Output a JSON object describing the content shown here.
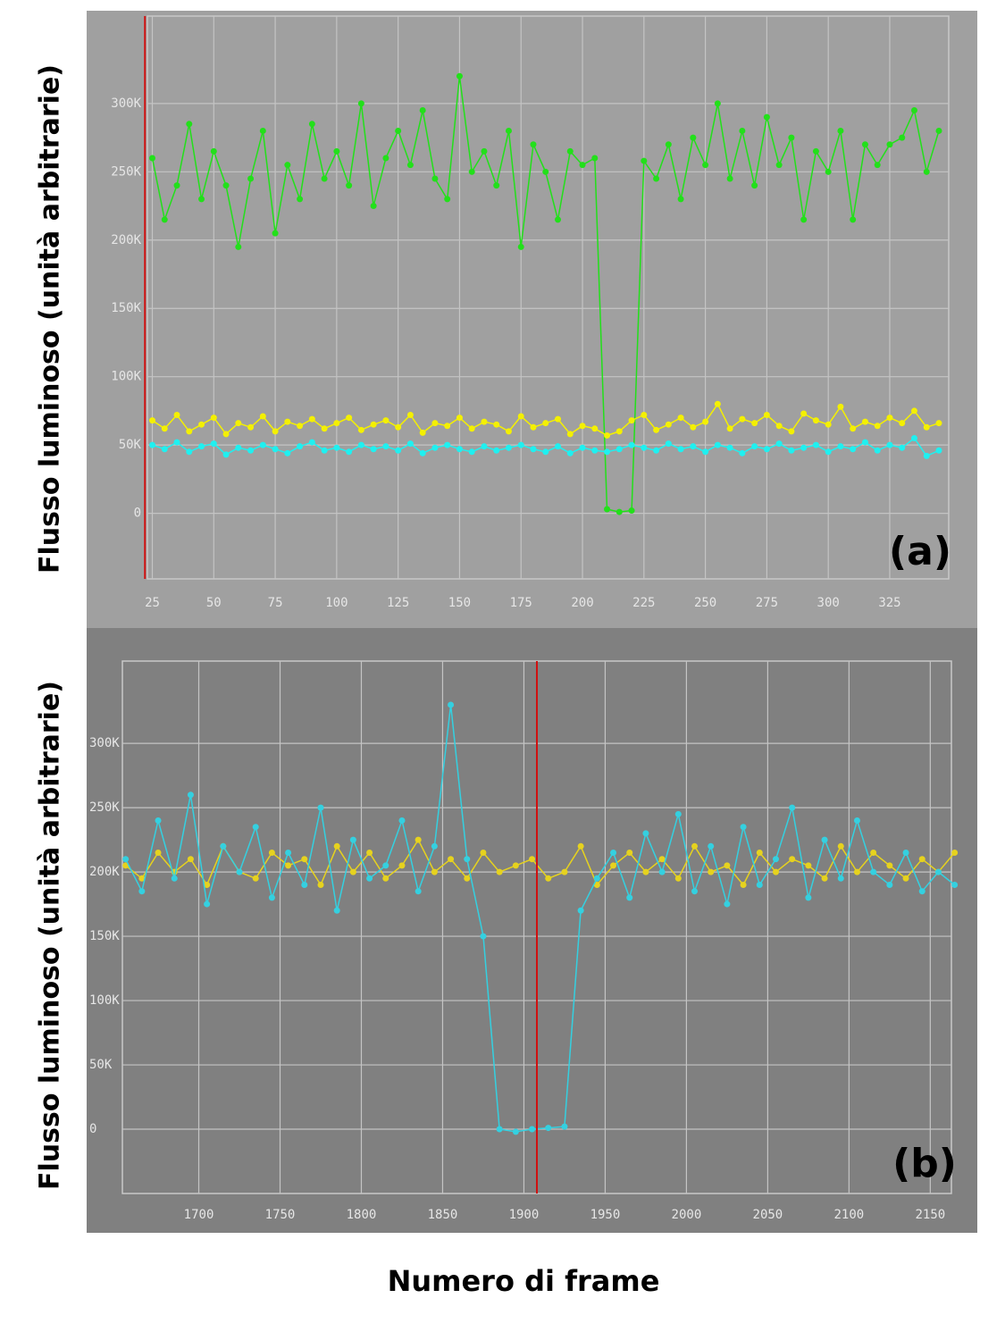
{
  "chart_data": [
    {
      "type": "line",
      "ylabel": "Flusso luminoso (unità arbitrarie)",
      "panel_label": "(a)",
      "background": "#a0a0a0",
      "cursor_x": 22,
      "x": [
        25,
        30,
        35,
        40,
        45,
        50,
        55,
        60,
        65,
        70,
        75,
        80,
        85,
        90,
        95,
        100,
        105,
        110,
        115,
        120,
        125,
        130,
        135,
        140,
        145,
        150,
        155,
        160,
        165,
        170,
        175,
        180,
        185,
        190,
        195,
        200,
        205,
        210,
        215,
        220,
        225,
        230,
        235,
        240,
        245,
        250,
        255,
        260,
        265,
        270,
        275,
        280,
        285,
        290,
        295,
        300,
        305,
        310,
        315,
        320,
        325,
        330,
        335,
        340,
        345
      ],
      "series": [
        {
          "color": "#22e01a",
          "values": [
            260000,
            215000,
            240000,
            285000,
            230000,
            265000,
            240000,
            195000,
            245000,
            280000,
            205000,
            255000,
            230000,
            285000,
            245000,
            265000,
            240000,
            300000,
            225000,
            260000,
            280000,
            255000,
            295000,
            245000,
            230000,
            320000,
            250000,
            265000,
            240000,
            280000,
            195000,
            270000,
            250000,
            215000,
            265000,
            255000,
            260000,
            3000,
            1000,
            2000,
            258000,
            245000,
            270000,
            230000,
            275000,
            255000,
            300000,
            245000,
            280000,
            240000,
            290000,
            255000,
            275000,
            215000,
            265000,
            250000,
            280000,
            215000,
            270000,
            255000,
            270000,
            275000,
            295000,
            250000,
            280000
          ]
        },
        {
          "color": "#f4f000",
          "values": [
            68000,
            62000,
            72000,
            60000,
            65000,
            70000,
            58000,
            66000,
            63000,
            71000,
            60000,
            67000,
            64000,
            69000,
            62000,
            66000,
            70000,
            61000,
            65000,
            68000,
            63000,
            72000,
            59000,
            66000,
            64000,
            70000,
            62000,
            67000,
            65000,
            60000,
            71000,
            63000,
            66000,
            69000,
            58000,
            64000,
            62000,
            57000,
            60000,
            68000,
            72000,
            61000,
            65000,
            70000,
            63000,
            67000,
            80000,
            62000,
            69000,
            66000,
            72000,
            64000,
            60000,
            73000,
            68000,
            65000,
            78000,
            62000,
            67000,
            64000,
            70000,
            66000,
            75000,
            63000,
            66000
          ]
        },
        {
          "color": "#1ff0f0",
          "values": [
            50000,
            47000,
            52000,
            45000,
            49000,
            51000,
            43000,
            48000,
            46000,
            50000,
            47000,
            44000,
            49000,
            52000,
            46000,
            48000,
            45000,
            50000,
            47000,
            49000,
            46000,
            51000,
            44000,
            48000,
            50000,
            47000,
            45000,
            49000,
            46000,
            48000,
            50000,
            47000,
            45000,
            49000,
            44000,
            48000,
            46000,
            45000,
            47000,
            50000,
            48000,
            46000,
            51000,
            47000,
            49000,
            45000,
            50000,
            48000,
            44000,
            49000,
            47000,
            51000,
            46000,
            48000,
            50000,
            45000,
            49000,
            47000,
            52000,
            46000,
            50000,
            48000,
            55000,
            42000,
            46000
          ]
        }
      ],
      "xlim": [
        23,
        349
      ],
      "ylim": [
        -48000,
        364000
      ],
      "xticks": [
        25,
        50,
        75,
        100,
        125,
        150,
        175,
        200,
        225,
        250,
        275,
        300,
        325
      ],
      "yticks": [
        0,
        {
          "value": 50000,
          "label": "50K"
        },
        {
          "value": 100000,
          "label": "100K"
        },
        {
          "value": 150000,
          "label": "150K"
        },
        {
          "value": 200000,
          "label": "200K"
        },
        {
          "value": 250000,
          "label": "250K"
        },
        {
          "value": 300000,
          "label": "300K"
        }
      ],
      "grid": true
    },
    {
      "type": "line",
      "ylabel": "Flusso luminoso (unità arbitrarie)",
      "panel_label": "(b)",
      "xlabel": "Numero di frame",
      "background": "#808080",
      "cursor_x": 1908,
      "x": [
        1655,
        1665,
        1675,
        1685,
        1695,
        1705,
        1715,
        1725,
        1735,
        1745,
        1755,
        1765,
        1775,
        1785,
        1795,
        1805,
        1815,
        1825,
        1835,
        1845,
        1855,
        1865,
        1875,
        1885,
        1895,
        1905,
        1915,
        1925,
        1935,
        1945,
        1955,
        1965,
        1975,
        1985,
        1995,
        2005,
        2015,
        2025,
        2035,
        2045,
        2055,
        2065,
        2075,
        2085,
        2095,
        2105,
        2115,
        2125,
        2135,
        2145,
        2155,
        2165
      ],
      "series": [
        {
          "color": "#e6d21e",
          "values": [
            205000,
            195000,
            215000,
            200000,
            210000,
            190000,
            220000,
            200000,
            195000,
            215000,
            205000,
            210000,
            190000,
            220000,
            200000,
            215000,
            195000,
            205000,
            225000,
            200000,
            210000,
            195000,
            215000,
            200000,
            205000,
            210000,
            195000,
            200000,
            220000,
            190000,
            205000,
            215000,
            200000,
            210000,
            195000,
            220000,
            200000,
            205000,
            190000,
            215000,
            200000,
            210000,
            205000,
            195000,
            220000,
            200000,
            215000,
            205000,
            195000,
            210000,
            200000,
            215000
          ]
        },
        {
          "color": "#34d0e0",
          "values": [
            210000,
            185000,
            240000,
            195000,
            260000,
            175000,
            220000,
            200000,
            235000,
            180000,
            215000,
            190000,
            250000,
            170000,
            225000,
            195000,
            205000,
            240000,
            185000,
            220000,
            330000,
            210000,
            150000,
            0,
            -2000,
            0,
            1000,
            2000,
            170000,
            195000,
            215000,
            180000,
            230000,
            200000,
            245000,
            185000,
            220000,
            175000,
            235000,
            190000,
            210000,
            250000,
            180000,
            225000,
            195000,
            240000,
            200000,
            190000,
            215000,
            185000,
            200000,
            190000
          ]
        }
      ],
      "xlim": [
        1653,
        2163
      ],
      "ylim": [
        -50000,
        364000
      ],
      "xticks": [
        1700,
        1750,
        1800,
        1850,
        1900,
        1950,
        2000,
        2050,
        2100,
        2150
      ],
      "yticks": [
        0,
        {
          "value": 50000,
          "label": "50K"
        },
        {
          "value": 100000,
          "label": "100K"
        },
        {
          "value": 150000,
          "label": "150K"
        },
        {
          "value": 200000,
          "label": "200K"
        },
        {
          "value": 250000,
          "label": "250K"
        },
        {
          "value": 300000,
          "label": "300K"
        }
      ],
      "grid": true
    }
  ]
}
